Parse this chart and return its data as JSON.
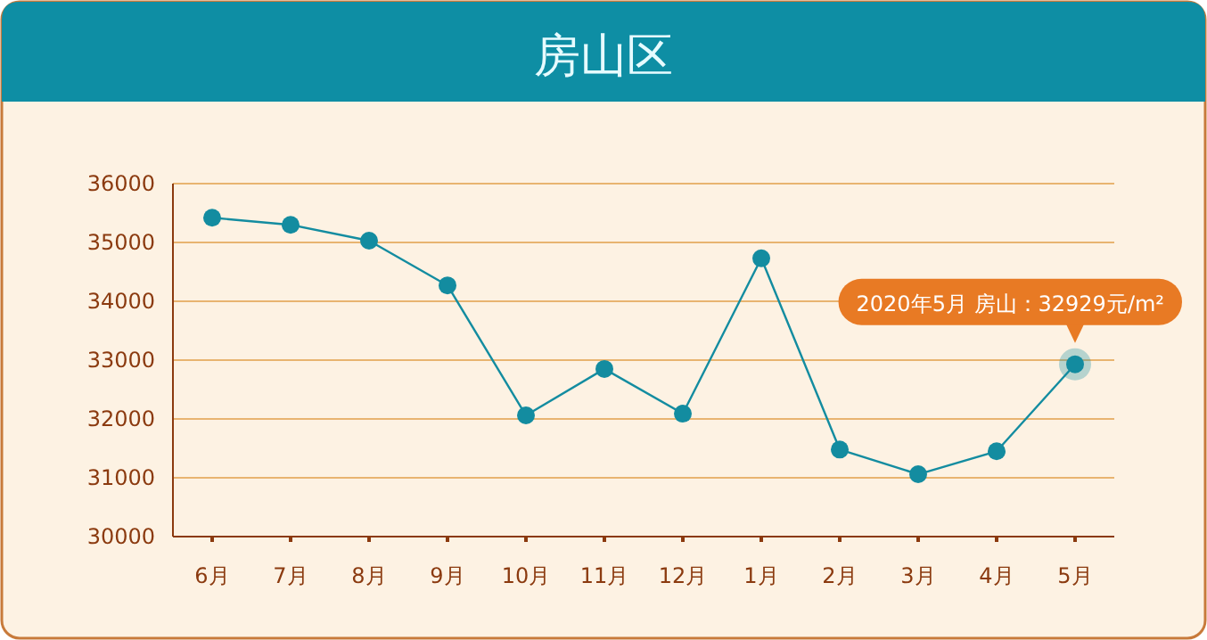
{
  "chart_data": {
    "type": "line",
    "title": "房山区",
    "categories": [
      "6月",
      "7月",
      "8月",
      "9月",
      "10月",
      "11月",
      "12月",
      "1月",
      "2月",
      "3月",
      "4月",
      "5月"
    ],
    "series": [
      {
        "color": "#138ca0",
        "values": [
          35420,
          35300,
          35030,
          34270,
          32060,
          32850,
          32090,
          34730,
          31480,
          31060,
          31450,
          32929
        ]
      }
    ],
    "ylim": [
      30000,
      36000
    ],
    "yticks": [
      30000,
      31000,
      32000,
      33000,
      34000,
      35000,
      36000
    ],
    "grid": "y",
    "marker": "circle",
    "line_style": "solid",
    "annotations": [
      {
        "text": "2020年5月 房山：32929元/m²",
        "x": "5月",
        "y": 32929
      }
    ]
  }
}
